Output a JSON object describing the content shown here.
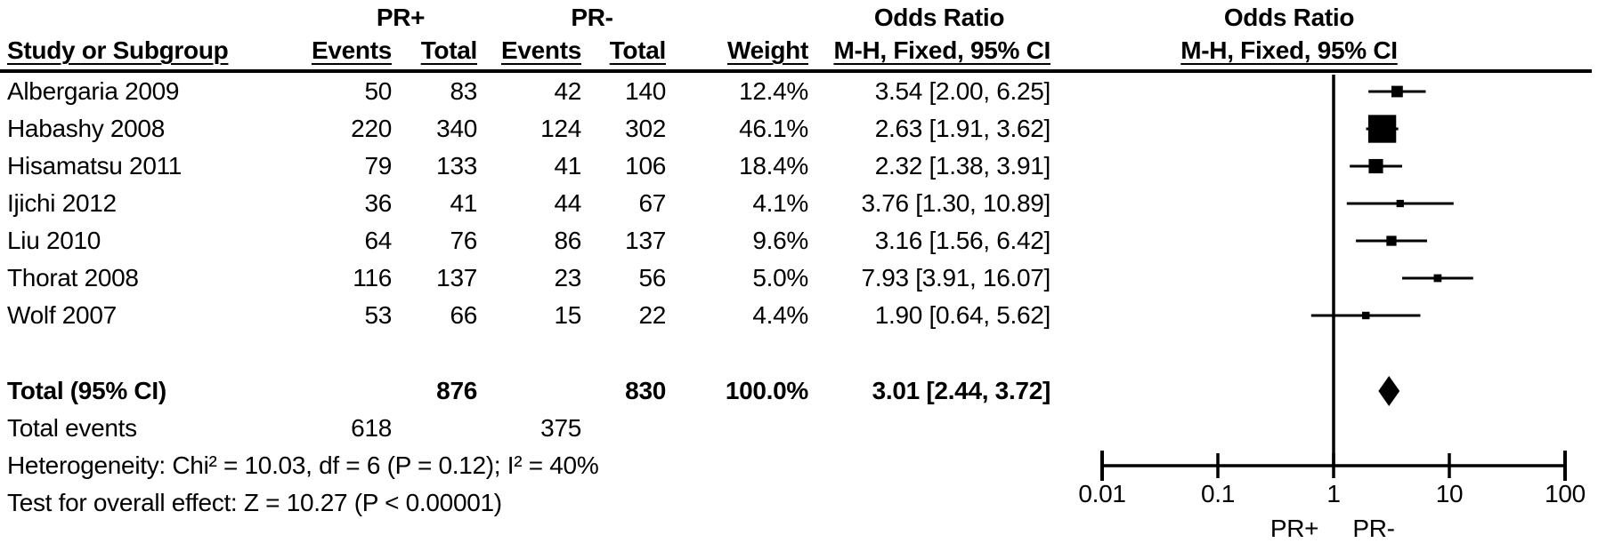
{
  "header": {
    "group1": "PR+",
    "group2": "PR-",
    "col_study": "Study or Subgroup",
    "col_events": "Events",
    "col_total": "Total",
    "col_weight": "Weight",
    "or_title": "Odds Ratio",
    "or_method": "M-H, Fixed, 95% CI",
    "plot_title": "Odds Ratio",
    "plot_method": "M-H, Fixed, 95% CI"
  },
  "chart_data": {
    "type": "forest",
    "x_scale": "log10",
    "axis_ticks": [
      0.01,
      0.1,
      1,
      10,
      100
    ],
    "axis_tick_labels": [
      "0.01",
      "0.1",
      "1",
      "10",
      "100"
    ],
    "null_line": 1,
    "favours_left": "PR+",
    "favours_right": "PR-",
    "studies": [
      {
        "name": "Albergaria 2009",
        "events1": "50",
        "total1": "83",
        "events2": "42",
        "total2": "140",
        "weight": "12.4%",
        "weight_pct": 12.4,
        "or": 3.54,
        "lo": 2.0,
        "hi": 6.25,
        "ci_text": "3.54 [2.00, 6.25]"
      },
      {
        "name": "Habashy 2008",
        "events1": "220",
        "total1": "340",
        "events2": "124",
        "total2": "302",
        "weight": "46.1%",
        "weight_pct": 46.1,
        "or": 2.63,
        "lo": 1.91,
        "hi": 3.62,
        "ci_text": "2.63 [1.91, 3.62]"
      },
      {
        "name": "Hisamatsu 2011",
        "events1": "79",
        "total1": "133",
        "events2": "41",
        "total2": "106",
        "weight": "18.4%",
        "weight_pct": 18.4,
        "or": 2.32,
        "lo": 1.38,
        "hi": 3.91,
        "ci_text": "2.32 [1.38, 3.91]"
      },
      {
        "name": "Ijichi 2012",
        "events1": "36",
        "total1": "41",
        "events2": "44",
        "total2": "67",
        "weight": "4.1%",
        "weight_pct": 4.1,
        "or": 3.76,
        "lo": 1.3,
        "hi": 10.89,
        "ci_text": "3.76 [1.30, 10.89]"
      },
      {
        "name": "Liu 2010",
        "events1": "64",
        "total1": "76",
        "events2": "86",
        "total2": "137",
        "weight": "9.6%",
        "weight_pct": 9.6,
        "or": 3.16,
        "lo": 1.56,
        "hi": 6.42,
        "ci_text": "3.16 [1.56, 6.42]"
      },
      {
        "name": "Thorat 2008",
        "events1": "116",
        "total1": "137",
        "events2": "23",
        "total2": "56",
        "weight": "5.0%",
        "weight_pct": 5.0,
        "or": 7.93,
        "lo": 3.91,
        "hi": 16.07,
        "ci_text": "7.93 [3.91, 16.07]"
      },
      {
        "name": "Wolf 2007",
        "events1": "53",
        "total1": "66",
        "events2": "15",
        "total2": "22",
        "weight": "4.4%",
        "weight_pct": 4.4,
        "or": 1.9,
        "lo": 0.64,
        "hi": 5.62,
        "ci_text": "1.90 [0.64, 5.62]"
      }
    ],
    "total": {
      "label": "Total (95% CI)",
      "total1": "876",
      "total2": "830",
      "weight": "100.0%",
      "or": 3.01,
      "lo": 2.44,
      "hi": 3.72,
      "ci_text": "3.01 [2.44, 3.72]"
    },
    "total_events": {
      "label": "Total events",
      "events1": "618",
      "events2": "375"
    },
    "heterogeneity": "Heterogeneity: Chi² = 10.03, df = 6 (P = 0.12); I² = 40%",
    "overall_effect": "Test for overall effect: Z = 10.27 (P < 0.00001)"
  },
  "colors": {
    "ink": "#000000",
    "background": "#ffffff"
  }
}
